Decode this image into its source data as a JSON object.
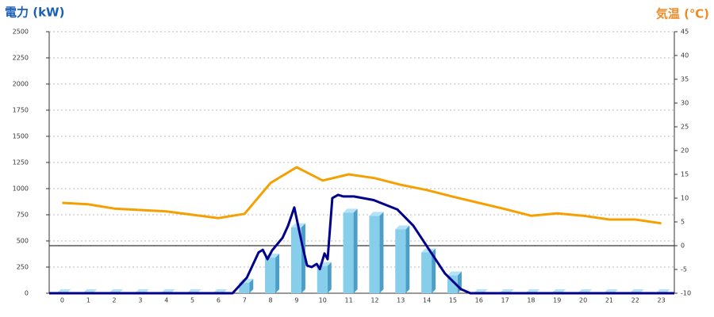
{
  "chart_data": {
    "type": "bar",
    "y_label": "電力 (kW)",
    "y2_label": "気温 (℃)",
    "categories": [
      "0",
      "1",
      "2",
      "3",
      "4",
      "5",
      "6",
      "7",
      "8",
      "9",
      "10",
      "11",
      "12",
      "13",
      "14",
      "15",
      "16",
      "17",
      "18",
      "19",
      "20",
      "21",
      "22",
      "23"
    ],
    "xlim": [
      -0.5,
      23.5
    ],
    "ylim": [
      0,
      2500
    ],
    "yticks": [
      0,
      250,
      500,
      750,
      1000,
      1250,
      1500,
      1750,
      2000,
      2250,
      2500
    ],
    "y2lim": [
      -10,
      45
    ],
    "y2ticks": [
      -10,
      -5,
      0,
      5,
      10,
      15,
      20,
      25,
      30,
      35,
      40,
      45
    ],
    "grid": true,
    "series": [
      {
        "type": "bar",
        "color": "#87ceeb",
        "values": [
          0,
          0,
          0,
          0,
          0,
          0,
          0,
          100,
          340,
          630,
          260,
          770,
          740,
          610,
          390,
          170,
          0,
          0,
          0,
          0,
          0,
          0,
          0,
          0
        ]
      },
      {
        "type": "line",
        "color": "#00008b",
        "x": [
          -0.5,
          6.54,
          7.09,
          7.54,
          7.7,
          7.88,
          8.06,
          8.46,
          8.67,
          8.91,
          9.22,
          9.4,
          9.58,
          9.77,
          9.89,
          10.07,
          10.19,
          10.37,
          10.59,
          10.8,
          11.2,
          11.96,
          12.87,
          13.48,
          14.09,
          14.69,
          15.3,
          15.67,
          23.5
        ],
        "values": [
          0,
          0,
          150,
          390,
          415,
          325,
          410,
          530,
          645,
          820,
          455,
          265,
          250,
          280,
          230,
          380,
          325,
          910,
          940,
          925,
          925,
          890,
          800,
          645,
          415,
          190,
          40,
          0,
          0
        ]
      },
      {
        "type": "line",
        "axis": "y2",
        "color": "#f5a000",
        "values": [
          9,
          8.7,
          7.8,
          7.5,
          7.2,
          6.5,
          5.8,
          6.7,
          13.2,
          16.5,
          13.7,
          15,
          14.2,
          12.8,
          11.7,
          10.3,
          9,
          7.7,
          6.3,
          6.8,
          6.3,
          5.5,
          5.5,
          4.7
        ]
      }
    ]
  }
}
